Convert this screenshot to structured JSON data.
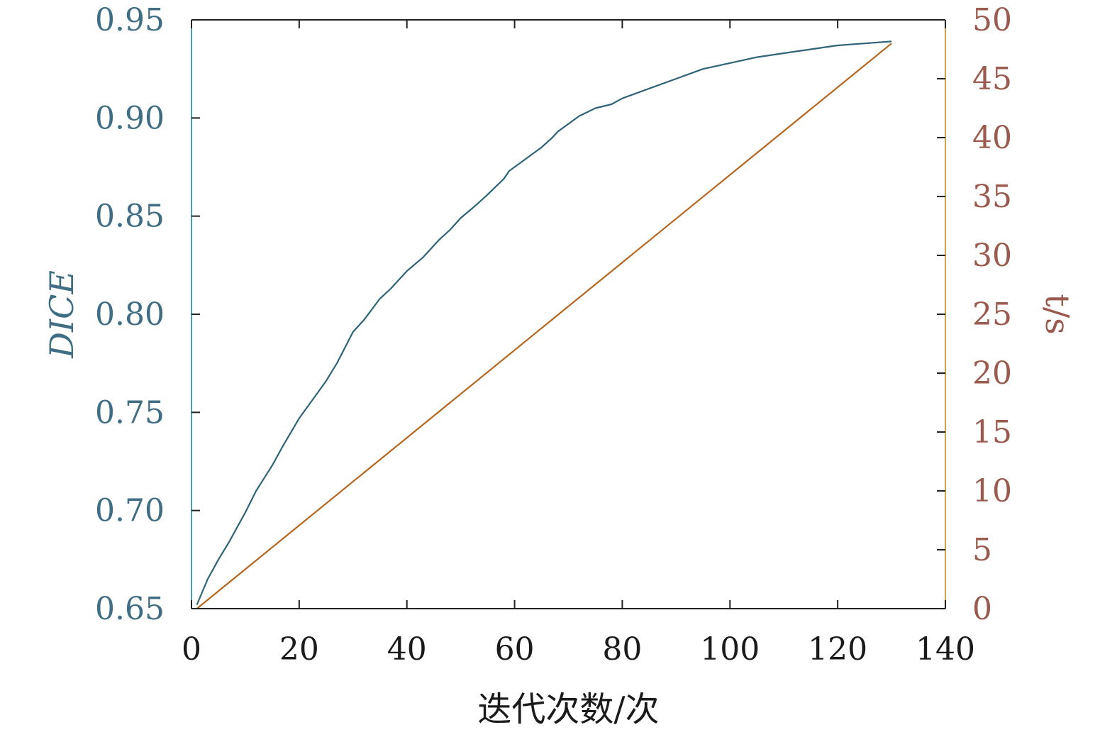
{
  "chart_data": {
    "type": "line",
    "xlabel": "迭代次数/次",
    "ylabel_left": "DICE",
    "ylabel_right": "t/s",
    "xlim": [
      0,
      140
    ],
    "ylim_left": [
      0.65,
      0.95
    ],
    "ylim_right": [
      0,
      50
    ],
    "x_ticks": [
      "0",
      "20",
      "40",
      "60",
      "80",
      "100",
      "120",
      "140"
    ],
    "y_left_ticks": [
      "0.65",
      "0.70",
      "0.75",
      "0.80",
      "0.85",
      "0.90",
      "0.95"
    ],
    "y_right_ticks": [
      "0",
      "5",
      "10",
      "15",
      "20",
      "25",
      "30",
      "35",
      "40",
      "45",
      "50"
    ],
    "grid": false,
    "colors": {
      "dice": "#2f6478",
      "time": "#b5651d",
      "left_axis": "#3f6e84",
      "right_axis": "#9a5a4e",
      "right_spine": "#c9a64a"
    },
    "series": [
      {
        "axis": "left",
        "x": [
          1,
          3,
          5,
          7,
          10,
          12,
          15,
          17,
          20,
          25,
          27,
          30,
          32,
          35,
          37,
          40,
          43,
          46,
          48,
          50,
          53,
          55,
          58,
          59,
          62,
          65,
          67,
          68,
          70,
          72,
          75,
          78,
          80,
          85,
          90,
          95,
          100,
          105,
          110,
          115,
          120,
          125,
          130
        ],
        "y": [
          0.652,
          0.665,
          0.675,
          0.684,
          0.699,
          0.71,
          0.723,
          0.733,
          0.747,
          0.766,
          0.775,
          0.791,
          0.797,
          0.808,
          0.813,
          0.822,
          0.829,
          0.838,
          0.843,
          0.849,
          0.856,
          0.861,
          0.869,
          0.873,
          0.879,
          0.885,
          0.89,
          0.893,
          0.897,
          0.901,
          0.905,
          0.907,
          0.91,
          0.915,
          0.92,
          0.925,
          0.928,
          0.931,
          0.933,
          0.935,
          0.937,
          0.938,
          0.939
        ]
      },
      {
        "axis": "right",
        "x": [
          1,
          130
        ],
        "y": [
          0,
          48
        ]
      }
    ]
  }
}
